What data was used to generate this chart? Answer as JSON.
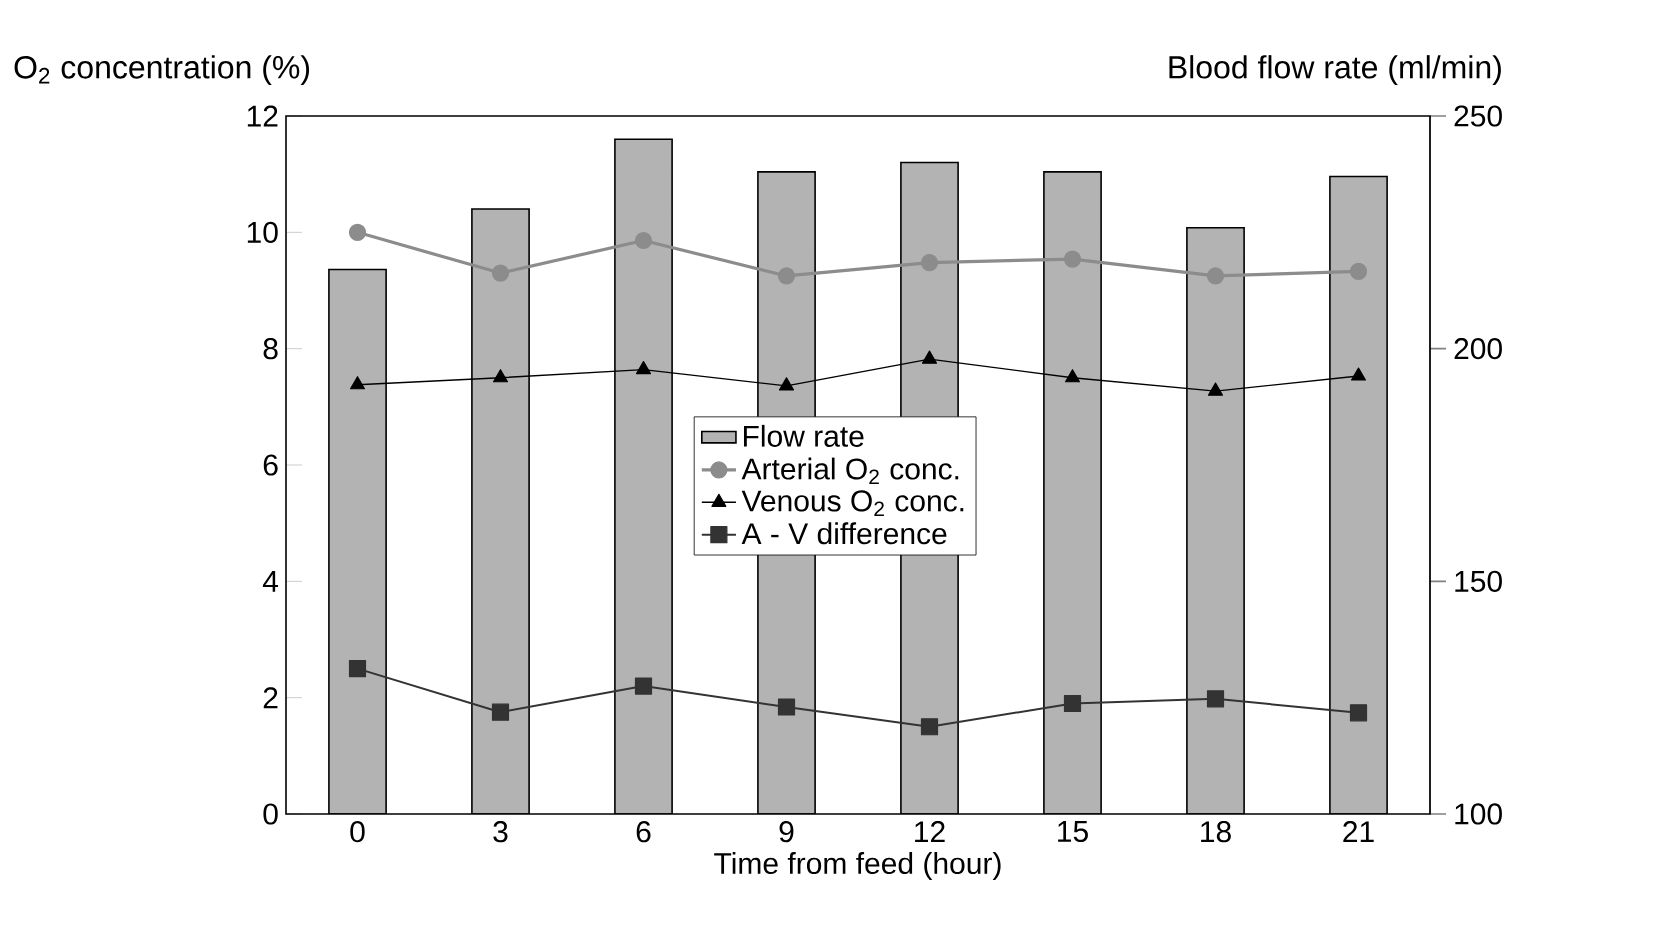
{
  "chart_data": {
    "type": "line",
    "xlabel": "Time from feed (hour)",
    "ylabel": "O$_{2}$ concentration (%)",
    "y2label": "Blood flow rate (ml/min)",
    "categories": [
      "0",
      "3",
      "6",
      "9",
      "12",
      "15",
      "18",
      "21"
    ],
    "series": [
      {
        "name": "Flow rate",
        "type": "bar",
        "axis": "y2",
        "color": "#b3b3b3",
        "values": [
          217,
          230,
          245,
          238,
          240,
          238,
          226,
          237
        ]
      },
      {
        "name": "Arterial O$_{2}$ conc.",
        "color": "#8c8c8c",
        "marker": "circle",
        "values": [
          10.0,
          9.3,
          9.86,
          9.25,
          9.48,
          9.54,
          9.25,
          9.33
        ]
      },
      {
        "name": "Venous O$_{2}$ conc.",
        "color": "#000000",
        "marker": "triangle",
        "values": [
          7.38,
          7.5,
          7.64,
          7.36,
          7.82,
          7.5,
          7.27,
          7.53
        ]
      },
      {
        "name": "A - V difference",
        "color": "#333333",
        "marker": "square",
        "values": [
          2.5,
          1.75,
          2.2,
          1.84,
          1.5,
          1.9,
          1.98,
          1.74
        ]
      }
    ],
    "ylim": [
      0,
      12
    ],
    "yticks": [
      0,
      2,
      4,
      6,
      8,
      10,
      12
    ],
    "y2lim": [
      100,
      250
    ],
    "y2ticks": [
      100,
      150,
      200,
      250
    ],
    "legend": "center",
    "grid": false
  }
}
